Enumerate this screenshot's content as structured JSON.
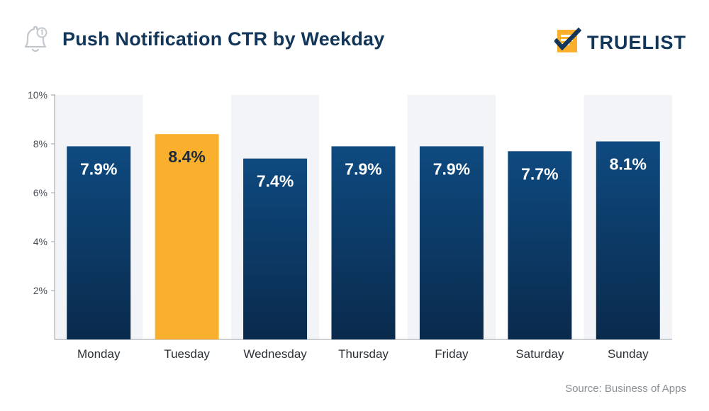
{
  "header": {
    "title": "Push Notification CTR by Weekday",
    "logo_text": "TRUELIST"
  },
  "source": "Source: Business of Apps",
  "colors": {
    "bar": "#0d3c6b",
    "highlight": "#fbb02d",
    "band": "#f3f4f7",
    "title": "#12365a"
  },
  "chart_data": {
    "type": "bar",
    "title": "Push Notification CTR by Weekday",
    "categories": [
      "Monday",
      "Tuesday",
      "Wednesday",
      "Thursday",
      "Friday",
      "Saturday",
      "Sunday"
    ],
    "values": [
      7.9,
      8.4,
      7.4,
      7.9,
      7.9,
      7.7,
      8.1
    ],
    "value_labels": [
      "7.9%",
      "8.4%",
      "7.4%",
      "7.9%",
      "7.9%",
      "7.7%",
      "8.1%"
    ],
    "highlight_index": 1,
    "ylim": [
      0,
      10
    ],
    "yticks": [
      2,
      4,
      6,
      8,
      10
    ],
    "ytick_labels": [
      "2%",
      "4%",
      "6%",
      "8%",
      "10%"
    ],
    "xlabel": "",
    "ylabel": "",
    "grid": false,
    "alternating_column_bands": true
  }
}
